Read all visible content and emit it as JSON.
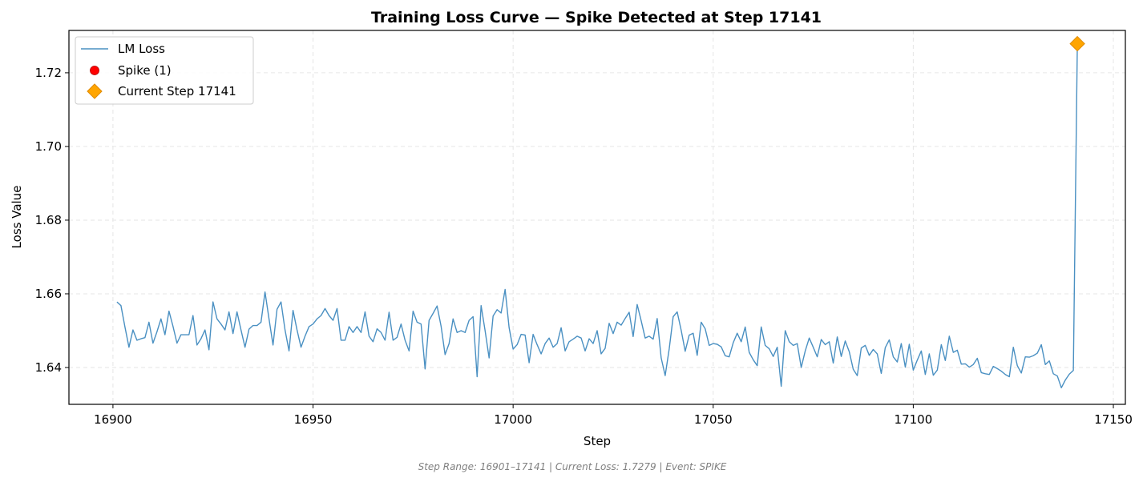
{
  "chart_data": {
    "type": "line",
    "title": "Training Loss Curve — Spike Detected at Step 17141",
    "xlabel": "Step",
    "ylabel": "Loss Value",
    "xlim": [
      16889,
      17153
    ],
    "ylim": [
      1.63,
      1.7315
    ],
    "xticks": [
      16900,
      16950,
      17000,
      17050,
      17100,
      17150
    ],
    "yticks": [
      1.64,
      1.66,
      1.68,
      1.7,
      1.72
    ],
    "ytick_labels": [
      "1.64",
      "1.66",
      "1.68",
      "1.70",
      "1.72"
    ],
    "grid": true,
    "legend_placement": "upper-left",
    "x_start": 16901,
    "series": [
      {
        "name": "LM Loss",
        "color": "#4a90c2",
        "values": [
          1.6578,
          1.6568,
          1.651,
          1.6455,
          1.6502,
          1.6474,
          1.6478,
          1.6481,
          1.6523,
          1.6466,
          1.6497,
          1.6532,
          1.6489,
          1.6553,
          1.6512,
          1.6466,
          1.6489,
          1.6489,
          1.6489,
          1.6541,
          1.6461,
          1.6478,
          1.6502,
          1.6448,
          1.6578,
          1.6532,
          1.6518,
          1.6502,
          1.6551,
          1.6492,
          1.6551,
          1.6502,
          1.6455,
          1.6504,
          1.6514,
          1.6514,
          1.6523,
          1.6605,
          1.6532,
          1.6461,
          1.6558,
          1.6578,
          1.6502,
          1.6445,
          1.6555,
          1.6502,
          1.6455,
          1.6485,
          1.6511,
          1.6518,
          1.6532,
          1.6541,
          1.656,
          1.6541,
          1.6528,
          1.656,
          1.6474,
          1.6474,
          1.6511,
          1.6495,
          1.6511,
          1.6495,
          1.6551,
          1.6485,
          1.647,
          1.6505,
          1.6495,
          1.6474,
          1.655,
          1.6474,
          1.6482,
          1.6518,
          1.6474,
          1.6445,
          1.6553,
          1.6523,
          1.6518,
          1.6396,
          1.6528,
          1.6547,
          1.6567,
          1.6512,
          1.6435,
          1.6465,
          1.6532,
          1.6495,
          1.65,
          1.6495,
          1.6528,
          1.6538,
          1.6375,
          1.6568,
          1.65,
          1.6426,
          1.654,
          1.6557,
          1.6548,
          1.6612,
          1.6508,
          1.645,
          1.6462,
          1.649,
          1.6488,
          1.6413,
          1.649,
          1.6462,
          1.6437,
          1.6465,
          1.648,
          1.6455,
          1.6465,
          1.6508,
          1.6445,
          1.647,
          1.6477,
          1.6485,
          1.648,
          1.6445,
          1.6478,
          1.6465,
          1.65,
          1.6437,
          1.6452,
          1.652,
          1.6492,
          1.6523,
          1.6515,
          1.6533,
          1.655,
          1.6484,
          1.6571,
          1.6527,
          1.648,
          1.6485,
          1.6477,
          1.6533,
          1.6426,
          1.6378,
          1.645,
          1.6538,
          1.6551,
          1.6501,
          1.6444,
          1.6488,
          1.6493,
          1.6433,
          1.6523,
          1.6505,
          1.646,
          1.6465,
          1.6463,
          1.6456,
          1.6432,
          1.6429,
          1.6467,
          1.6493,
          1.647,
          1.651,
          1.6441,
          1.6421,
          1.6405,
          1.651,
          1.646,
          1.6451,
          1.643,
          1.6455,
          1.6349,
          1.65,
          1.647,
          1.646,
          1.6465,
          1.64,
          1.6445,
          1.648,
          1.6455,
          1.6429,
          1.6476,
          1.6462,
          1.647,
          1.6412,
          1.6483,
          1.643,
          1.6472,
          1.6443,
          1.6395,
          1.6378,
          1.6453,
          1.646,
          1.6433,
          1.6449,
          1.6437,
          1.6384,
          1.6454,
          1.6475,
          1.6429,
          1.6415,
          1.6465,
          1.6401,
          1.6463,
          1.6393,
          1.642,
          1.6445,
          1.6381,
          1.6437,
          1.6379,
          1.6393,
          1.6462,
          1.6419,
          1.6485,
          1.6441,
          1.6447,
          1.6409,
          1.641,
          1.6401,
          1.6408,
          1.6425,
          1.6386,
          1.6383,
          1.6381,
          1.6403,
          1.6397,
          1.639,
          1.6381,
          1.6375,
          1.6455,
          1.6405,
          1.6385,
          1.6429,
          1.6428,
          1.6432,
          1.6439,
          1.6462,
          1.6408,
          1.6418,
          1.6383,
          1.6377,
          1.6345,
          1.6366,
          1.6382,
          1.6392,
          1.7279
        ]
      },
      {
        "name": "Spike (1)",
        "color": "#ff0000",
        "x": [
          17141
        ],
        "y": [
          1.7279
        ]
      },
      {
        "name": "Current Step 17141",
        "color": "#ffa500",
        "x": [
          17141
        ],
        "y": [
          1.7279
        ]
      }
    ]
  },
  "footer": "Step Range: 16901–17141 | Current Loss: 1.7279 | Event: SPIKE"
}
